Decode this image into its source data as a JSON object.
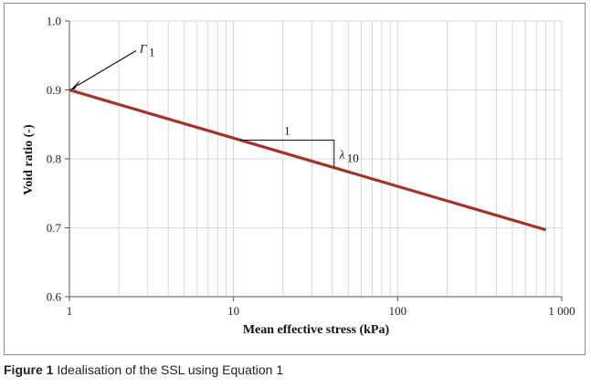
{
  "chart_data": {
    "type": "line",
    "title": "",
    "xlabel": "Mean effective stress (kPa)",
    "ylabel": "Void ratio (-)",
    "xscale": "log",
    "xlim": [
      1,
      1000
    ],
    "ylim": [
      0.6,
      1.0
    ],
    "x_ticks": [
      1,
      10,
      100,
      1000
    ],
    "x_tick_labels": [
      "1",
      "10",
      "100",
      "1 000"
    ],
    "y_ticks": [
      0.6,
      0.7,
      0.8,
      0.9,
      1.0
    ],
    "y_tick_labels": [
      "0.6",
      "0.7",
      "0.8",
      "0.9",
      "1.0"
    ],
    "grid": true,
    "series": [
      {
        "name": "SSL",
        "color": "#a3322a",
        "x": [
          1,
          800
        ],
        "y": [
          0.9,
          0.697
        ]
      }
    ],
    "annotations": {
      "gamma": {
        "symbol": "Γ",
        "subscript": "1",
        "point": [
          1,
          0.9
        ]
      },
      "slope_run_label": "1",
      "slope_symbol": "λ",
      "slope_subscript": "10",
      "slope_triangle": {
        "x_start": 11,
        "x_end": 41
      }
    }
  },
  "caption": {
    "label": "Figure 1",
    "text": " Idealisation of the SSL using Equation 1"
  },
  "colors": {
    "line": "#a3322a",
    "grid": "#cfcfcf",
    "axis": "#555555"
  }
}
